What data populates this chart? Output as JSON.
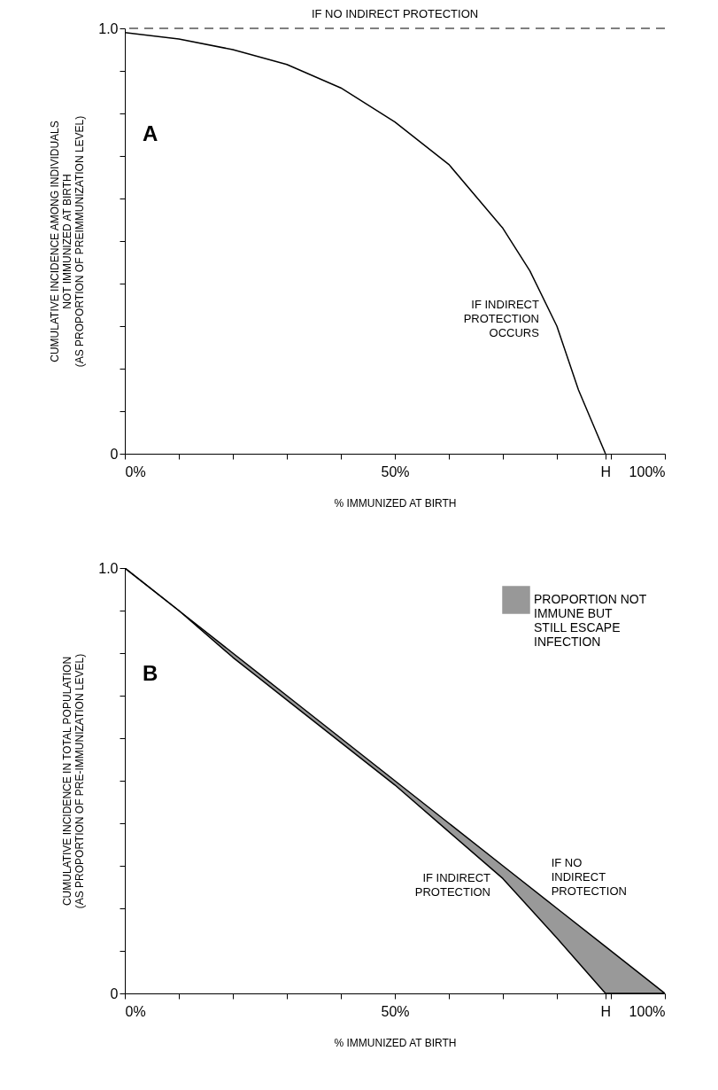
{
  "chart_data": [
    {
      "type": "line",
      "xlabel": "% IMMUNIZED AT BIRTH",
      "ylabel": "CUMULATIVE INCIDENCE AMONG INDIVIDUALS\nNOT IMMUNIZED AT BIRTH\n(AS PROPORTION OF PREIMMUNIZATION LEVEL)",
      "xlim": [
        0,
        100
      ],
      "ylim": [
        0,
        1
      ],
      "xticks": [
        {
          "value": 0,
          "label": "0%"
        },
        {
          "value": 10,
          "label": null
        },
        {
          "value": 20,
          "label": null
        },
        {
          "value": 30,
          "label": null
        },
        {
          "value": 40,
          "label": null
        },
        {
          "value": 50,
          "label": "50%"
        },
        {
          "value": 60,
          "label": null
        },
        {
          "value": 70,
          "label": null
        },
        {
          "value": 80,
          "label": null
        },
        {
          "value": 89,
          "label": "H"
        },
        {
          "value": 90,
          "label": null
        },
        {
          "value": 100,
          "label": "100%"
        }
      ],
      "yticks": [
        0,
        {
          "value": 0.1,
          "label": null
        },
        {
          "value": 0.2,
          "label": null
        },
        {
          "value": 0.3,
          "label": null
        },
        {
          "value": 0.4,
          "label": null
        },
        {
          "value": 0.5,
          "label": null
        },
        {
          "value": 0.6,
          "label": null
        },
        {
          "value": 0.7,
          "label": null
        },
        {
          "value": 0.8,
          "label": null
        },
        {
          "value": 0.9,
          "label": null
        },
        {
          "value": 1,
          "label": "1.0"
        }
      ],
      "grid": false,
      "marker": "none",
      "series": [
        {
          "color": "#000000",
          "x": [
            0,
            10,
            20,
            30,
            40,
            50,
            60,
            70,
            75,
            80,
            84,
            87,
            89
          ],
          "values": [
            0.99,
            0.975,
            0.95,
            0.915,
            0.86,
            0.78,
            0.68,
            0.53,
            0.43,
            0.3,
            0.15,
            0.06,
            0
          ]
        }
      ],
      "ref_lines": [
        {
          "axis": "y",
          "value": 1,
          "label": "IF NO INDIRECT PROTECTION",
          "color": "#000000",
          "line_style": "dashed"
        }
      ],
      "annotations": [
        "A",
        {
          "text": "IF INDIRECT\nPROTECTION\nOCCURS",
          "x": 79,
          "y": 0.35
        }
      ]
    },
    {
      "type": "line",
      "xlabel": "% IMMUNIZED AT BIRTH",
      "ylabel": "CUMULATIVE INCIDENCE IN TOTAL POPULATION\n(AS PROPORTION OF PRE-IMMUNIZATION LEVEL)",
      "xlim": [
        0,
        100
      ],
      "ylim": [
        0,
        1
      ],
      "xticks": [
        {
          "value": 0,
          "label": "0%"
        },
        {
          "value": 10,
          "label": null
        },
        {
          "value": 20,
          "label": null
        },
        {
          "value": 30,
          "label": null
        },
        {
          "value": 40,
          "label": null
        },
        {
          "value": 50,
          "label": "50%"
        },
        {
          "value": 60,
          "label": null
        },
        {
          "value": 70,
          "label": null
        },
        {
          "value": 80,
          "label": null
        },
        {
          "value": 89,
          "label": "H"
        },
        {
          "value": 90,
          "label": null
        },
        {
          "value": 100,
          "label": "100%"
        }
      ],
      "yticks": [
        0,
        {
          "value": 0.1,
          "label": null
        },
        {
          "value": 0.2,
          "label": null
        },
        {
          "value": 0.3,
          "label": null
        },
        {
          "value": 0.4,
          "label": null
        },
        {
          "value": 0.5,
          "label": null
        },
        {
          "value": 0.6,
          "label": null
        },
        {
          "value": 0.7,
          "label": null
        },
        {
          "value": 0.8,
          "label": null
        },
        {
          "value": 0.9,
          "label": null
        },
        {
          "value": 1,
          "label": "1.0"
        }
      ],
      "grid": false,
      "marker": "none",
      "legend": "top right",
      "x": [
        0,
        10,
        20,
        30,
        40,
        50,
        60,
        70,
        80,
        89,
        100
      ],
      "series": [
        {
          "name": "PROPORTION NOT\nIMMUNE BUT\nSTILL ESCAPE\nINFECTION",
          "color": "#000000",
          "values": [
            1,
            0.9,
            0.8,
            0.7,
            0.6,
            0.5,
            0.4,
            0.3,
            0.2,
            0.11,
            0
          ],
          "lower": [
            1,
            0.9,
            0.79,
            0.69,
            0.59,
            0.49,
            0.38,
            0.27,
            0.13,
            0,
            0
          ],
          "upper": [
            1,
            0.9,
            0.8,
            0.7,
            0.6,
            0.5,
            0.4,
            0.3,
            0.2,
            0.11,
            0
          ]
        },
        {
          "color": "#000000",
          "values": [
            1,
            0.9,
            0.79,
            0.69,
            0.59,
            0.49,
            0.38,
            0.27,
            0.13,
            0,
            0
          ]
        }
      ],
      "annotations": [
        "B",
        {
          "text": "IF INDIRECT\nPROTECTION",
          "x": 70,
          "y": 0.27
        },
        {
          "text": "IF NO\nINDIRECT\nPROTECTION",
          "x": 77,
          "y": 0.23
        }
      ]
    }
  ]
}
